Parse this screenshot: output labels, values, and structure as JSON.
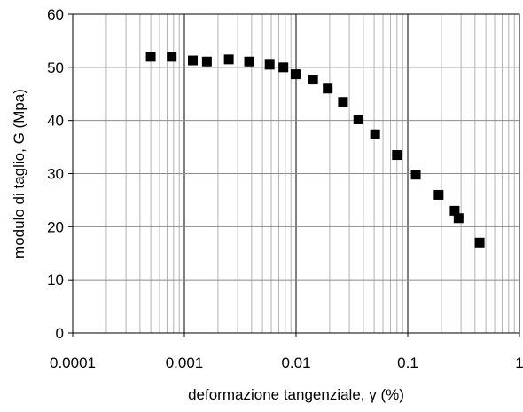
{
  "chart_data": {
    "type": "scatter",
    "title": "",
    "xlabel": "deformazione tangenziale, γ (%)",
    "ylabel": "modulo di taglio, G (Mpa)",
    "xscale": "log",
    "xlim": [
      0.0001,
      1
    ],
    "ylim": [
      0,
      60
    ],
    "x_ticks": [
      {
        "value": 0.0001,
        "label": "0.0001"
      },
      {
        "value": 0.001,
        "label": "0.001"
      },
      {
        "value": 0.01,
        "label": "0.01"
      },
      {
        "value": 0.1,
        "label": "0.1"
      },
      {
        "value": 1,
        "label": "1"
      }
    ],
    "y_ticks": [
      {
        "value": 0,
        "label": "0"
      },
      {
        "value": 10,
        "label": "10"
      },
      {
        "value": 20,
        "label": "20"
      },
      {
        "value": 30,
        "label": "30"
      },
      {
        "value": 40,
        "label": "40"
      },
      {
        "value": 50,
        "label": "50"
      },
      {
        "value": 60,
        "label": "60"
      }
    ],
    "grid": true,
    "marker": "square",
    "marker_color": "#000000",
    "series": [
      {
        "points": [
          {
            "x": 0.0005,
            "y": 52.0
          },
          {
            "x": 0.00077,
            "y": 52.0
          },
          {
            "x": 0.00119,
            "y": 51.3
          },
          {
            "x": 0.00159,
            "y": 51.1
          },
          {
            "x": 0.0025,
            "y": 51.5
          },
          {
            "x": 0.0038,
            "y": 51.1
          },
          {
            "x": 0.0058,
            "y": 50.5
          },
          {
            "x": 0.0077,
            "y": 50.0
          },
          {
            "x": 0.0099,
            "y": 48.7
          },
          {
            "x": 0.0142,
            "y": 47.7
          },
          {
            "x": 0.0192,
            "y": 46.0
          },
          {
            "x": 0.0263,
            "y": 43.5
          },
          {
            "x": 0.0361,
            "y": 40.2
          },
          {
            "x": 0.051,
            "y": 37.4
          },
          {
            "x": 0.08,
            "y": 33.5
          },
          {
            "x": 0.118,
            "y": 29.8
          },
          {
            "x": 0.189,
            "y": 26.0
          },
          {
            "x": 0.263,
            "y": 23.0
          },
          {
            "x": 0.285,
            "y": 21.6
          },
          {
            "x": 0.44,
            "y": 17.0
          }
        ]
      }
    ]
  }
}
